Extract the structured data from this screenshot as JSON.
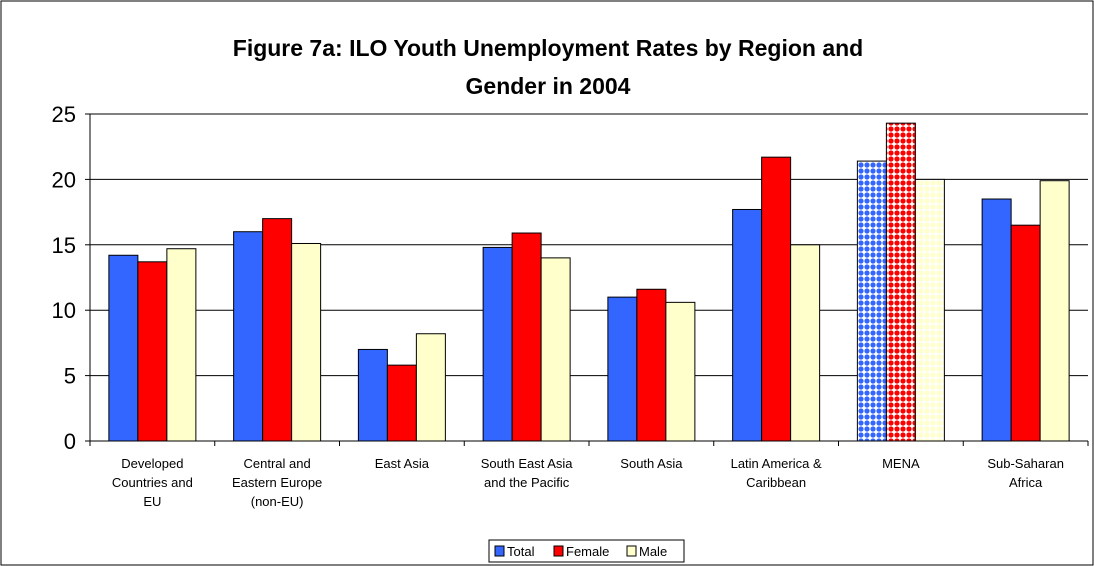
{
  "chart_data": {
    "type": "bar",
    "title": "Figure 7a: ILO Youth Unemployment Rates by Region and Gender in 2004",
    "title_lines": [
      "Figure 7a: ILO Youth Unemployment Rates by Region and",
      "Gender in 2004"
    ],
    "xlabel": "",
    "ylabel": "",
    "ylim": [
      0,
      25
    ],
    "yticks": [
      0,
      5,
      10,
      15,
      20,
      25
    ],
    "grid": true,
    "legend_position": "bottom",
    "categories": [
      "Developed Countries and EU",
      "Central and Eastern Europe (non-EU)",
      "East Asia",
      "South East Asia and the Pacific",
      "South Asia",
      "Latin America & Caribbean",
      "MENA",
      "Sub-Saharan Africa"
    ],
    "category_label_lines": [
      [
        "Developed",
        "Countries and",
        "EU"
      ],
      [
        "Central and",
        "Eastern Europe",
        "(non-EU)"
      ],
      [
        "East Asia"
      ],
      [
        "South East Asia",
        "and the Pacific"
      ],
      [
        "South Asia"
      ],
      [
        "Latin America &",
        "Caribbean"
      ],
      [
        "MENA"
      ],
      [
        "Sub-Saharan",
        "Africa"
      ]
    ],
    "series": [
      {
        "name": "Total",
        "color": "#3366FF",
        "values": [
          14.2,
          16.0,
          7.0,
          14.8,
          11.0,
          17.7,
          21.4,
          18.5
        ]
      },
      {
        "name": "Female",
        "color": "#FF0000",
        "values": [
          13.7,
          17.0,
          5.8,
          15.9,
          11.6,
          21.7,
          24.3,
          16.5
        ]
      },
      {
        "name": "Male",
        "color": "#FFFFCC",
        "values": [
          14.7,
          15.1,
          8.2,
          14.0,
          10.6,
          15.0,
          20.0,
          19.9
        ]
      }
    ],
    "highlighted_category": "MENA"
  }
}
